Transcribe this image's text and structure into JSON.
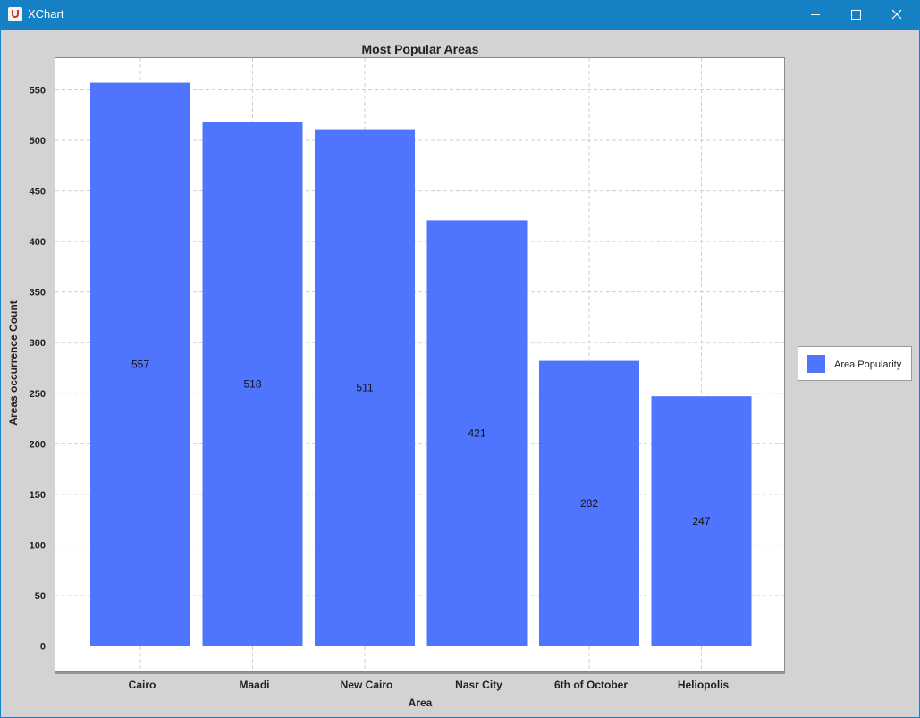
{
  "window": {
    "title": "XChart",
    "icon": "java-cup-icon",
    "controls": {
      "minimize_icon": "minimize-icon",
      "maximize_icon": "maximize-icon",
      "close_icon": "close-icon"
    }
  },
  "chart_data": {
    "type": "bar",
    "title": "Most Popular Areas",
    "xlabel": "Area",
    "ylabel": "Areas occurrence Count",
    "categories": [
      "Cairo",
      "Maadi",
      "New Cairo",
      "Nasr City",
      "6th of October",
      "Heliopolis"
    ],
    "series": [
      {
        "name": "Area Popularity",
        "values": [
          557,
          518,
          511,
          421,
          282,
          247
        ],
        "color": "#4f75ff"
      }
    ],
    "data_labels": [
      "557",
      "518",
      "511",
      "421",
      "282",
      "247"
    ],
    "yticks": [
      0,
      50,
      100,
      150,
      200,
      250,
      300,
      350,
      400,
      450,
      500,
      550
    ],
    "ylim": [
      0,
      580
    ],
    "grid": true,
    "legend_position": "outside-right"
  }
}
